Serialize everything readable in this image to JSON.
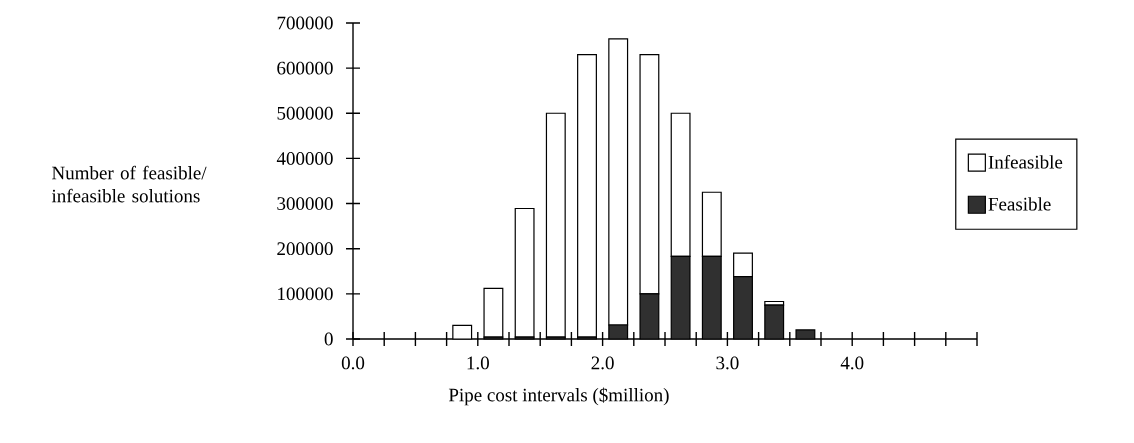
{
  "chart_data": {
    "type": "bar",
    "stacked": true,
    "xlabel": "Pipe cost intervals ($million)",
    "ylabel": "Number of feasible/ infeasible solutions",
    "x": [
      0.875,
      1.125,
      1.375,
      1.625,
      1.875,
      2.125,
      2.375,
      2.625,
      2.875,
      3.125,
      3.375,
      3.625
    ],
    "series": [
      {
        "name": "Feasible",
        "color": "#303030",
        "values": [
          0,
          4000,
          4000,
          4000,
          4000,
          31000,
          100000,
          183000,
          183000,
          138000,
          75000,
          20000
        ]
      },
      {
        "name": "Infeasible",
        "color": "#ffffff",
        "values": [
          30000,
          108000,
          285000,
          496000,
          626000,
          634000,
          530000,
          317000,
          142000,
          52000,
          8000,
          0
        ]
      }
    ],
    "xlim": [
      0,
      5
    ],
    "xticks": [
      {
        "value": 0,
        "label": "0.0"
      },
      {
        "value": 0.25,
        "label": null
      },
      {
        "value": 0.5,
        "label": null
      },
      {
        "value": 0.75,
        "label": null
      },
      {
        "value": 1,
        "label": "1.0"
      },
      {
        "value": 1.25,
        "label": null
      },
      {
        "value": 1.5,
        "label": null
      },
      {
        "value": 1.75,
        "label": null
      },
      {
        "value": 2,
        "label": "2.0"
      },
      {
        "value": 2.25,
        "label": null
      },
      {
        "value": 2.5,
        "label": null
      },
      {
        "value": 2.75,
        "label": null
      },
      {
        "value": 3,
        "label": "3.0"
      },
      {
        "value": 3.25,
        "label": null
      },
      {
        "value": 3.5,
        "label": null
      },
      {
        "value": 3.75,
        "label": null
      },
      {
        "value": 4,
        "label": "4.0"
      },
      {
        "value": 4.25,
        "label": null
      },
      {
        "value": 4.5,
        "label": null
      },
      {
        "value": 4.75,
        "label": null
      },
      {
        "value": 5,
        "label": null
      }
    ],
    "ylim": [
      0,
      700000
    ],
    "yticks": [
      0,
      100000,
      200000,
      300000,
      400000,
      500000,
      600000,
      700000
    ],
    "legend": "right",
    "grid": false
  }
}
